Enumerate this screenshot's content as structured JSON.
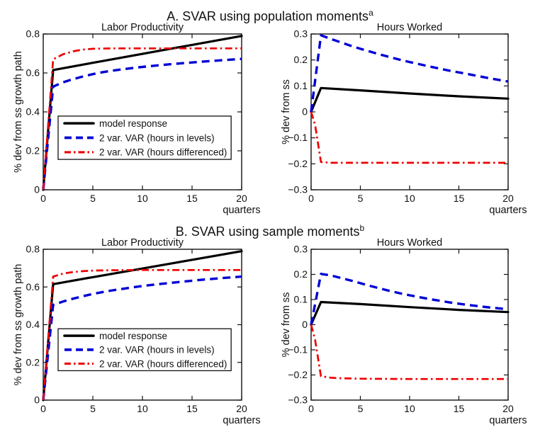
{
  "sections": [
    {
      "title": "A. SVAR using population moments",
      "superscript": "a"
    },
    {
      "title": "B. SVAR using sample moments",
      "superscript": "b"
    }
  ],
  "colors": {
    "model": "#000000",
    "var_levels": "#0000d5",
    "var_differenced": "#ee0000"
  },
  "chart_data": [
    {
      "type": "line",
      "title": "Labor Productivity",
      "xlabel": "quarters",
      "ylabel": "% dev from ss growth path",
      "xlim": [
        0,
        20
      ],
      "ylim": [
        0,
        0.8
      ],
      "xticks": [
        0,
        5,
        10,
        15,
        20
      ],
      "xtick_labels": [
        "0",
        "5",
        "10",
        "15",
        "20"
      ],
      "yticks": [
        0,
        0.2,
        0.4,
        0.6,
        0.8
      ],
      "ytick_labels": [
        "0",
        "0.2",
        "0.4",
        "0.6",
        "0.8"
      ],
      "grid": false,
      "legend": true,
      "legend_position": "lower-middle-left",
      "series": [
        {
          "name": "model response",
          "style": "solid",
          "color": "#000000",
          "x": [
            0,
            1,
            5,
            10,
            15,
            20
          ],
          "y": [
            0,
            0.615,
            0.652,
            0.698,
            0.744,
            0.79
          ]
        },
        {
          "name": "2 var. VAR (hours in levels)",
          "style": "dashed",
          "color": "#0000d5",
          "x": [
            0,
            1,
            2,
            3,
            4,
            5,
            6,
            7,
            8,
            9,
            10,
            12,
            14,
            16,
            18,
            20
          ],
          "y": [
            0,
            0.53,
            0.552,
            0.568,
            0.582,
            0.594,
            0.604,
            0.612,
            0.619,
            0.625,
            0.631,
            0.641,
            0.65,
            0.658,
            0.665,
            0.672
          ]
        },
        {
          "name": "2 var. VAR (hours differenced)",
          "style": "dashdot",
          "color": "#ee0000",
          "x": [
            0,
            1,
            2,
            3,
            4,
            5,
            7,
            10,
            15,
            20
          ],
          "y": [
            0,
            0.67,
            0.696,
            0.711,
            0.72,
            0.724,
            0.726,
            0.726,
            0.726,
            0.726
          ]
        }
      ]
    },
    {
      "type": "line",
      "title": "Hours Worked",
      "xlabel": "quarters",
      "ylabel": "% dev from ss",
      "xlim": [
        0,
        20
      ],
      "ylim": [
        -0.3,
        0.3
      ],
      "xticks": [
        0,
        5,
        10,
        15,
        20
      ],
      "xtick_labels": [
        "0",
        "5",
        "10",
        "15",
        "20"
      ],
      "yticks": [
        -0.3,
        -0.2,
        -0.1,
        0,
        0.1,
        0.2,
        0.3
      ],
      "ytick_labels": [
        "−0.3",
        "−0.2",
        "−0.1",
        "0",
        "0.1",
        "0.2",
        "0.3"
      ],
      "grid": false,
      "legend": false,
      "series": [
        {
          "name": "model response",
          "style": "solid",
          "color": "#000000",
          "x": [
            0,
            1,
            5,
            10,
            15,
            20
          ],
          "y": [
            0,
            0.092,
            0.083,
            0.071,
            0.06,
            0.051
          ]
        },
        {
          "name": "2 var. VAR (hours in levels)",
          "style": "dashed",
          "color": "#0000d5",
          "x": [
            0,
            1,
            2,
            3,
            4,
            5,
            6,
            7,
            8,
            9,
            10,
            12,
            14,
            16,
            18,
            20
          ],
          "y": [
            0,
            0.295,
            0.281,
            0.268,
            0.255,
            0.243,
            0.232,
            0.221,
            0.211,
            0.201,
            0.192,
            0.175,
            0.159,
            0.145,
            0.13,
            0.117
          ]
        },
        {
          "name": "2 var. VAR (hours differenced)",
          "style": "dashdot",
          "color": "#ee0000",
          "x": [
            0,
            0.4,
            1,
            2,
            5,
            10,
            15,
            20
          ],
          "y": [
            0,
            -0.05,
            -0.193,
            -0.196,
            -0.196,
            -0.196,
            -0.196,
            -0.196
          ]
        }
      ]
    },
    {
      "type": "line",
      "title": "Labor Productivity",
      "xlabel": "quarters",
      "ylabel": "% dev from ss growth path",
      "xlim": [
        0,
        20
      ],
      "ylim": [
        0,
        0.8
      ],
      "xticks": [
        0,
        5,
        10,
        15,
        20
      ],
      "xtick_labels": [
        "0",
        "5",
        "10",
        "15",
        "20"
      ],
      "yticks": [
        0,
        0.2,
        0.4,
        0.6,
        0.8
      ],
      "ytick_labels": [
        "0",
        "0.2",
        "0.4",
        "0.6",
        "0.8"
      ],
      "grid": false,
      "legend": true,
      "legend_position": "lower-middle-left",
      "series": [
        {
          "name": "model response",
          "style": "solid",
          "color": "#000000",
          "x": [
            0,
            1,
            5,
            10,
            15,
            20
          ],
          "y": [
            0,
            0.615,
            0.652,
            0.698,
            0.744,
            0.79
          ]
        },
        {
          "name": "2 var. VAR (hours in levels)",
          "style": "dashed",
          "color": "#0000d5",
          "x": [
            0,
            1,
            2,
            3,
            4,
            5,
            6,
            7,
            8,
            9,
            10,
            12,
            14,
            16,
            18,
            20
          ],
          "y": [
            0,
            0.505,
            0.523,
            0.538,
            0.551,
            0.563,
            0.573,
            0.582,
            0.59,
            0.598,
            0.605,
            0.617,
            0.628,
            0.638,
            0.647,
            0.655
          ]
        },
        {
          "name": "2 var. VAR (hours differenced)",
          "style": "dashdot",
          "color": "#ee0000",
          "x": [
            0,
            1,
            2,
            3,
            4,
            5,
            7,
            10,
            15,
            20
          ],
          "y": [
            0,
            0.655,
            0.671,
            0.679,
            0.684,
            0.687,
            0.689,
            0.69,
            0.69,
            0.69
          ]
        }
      ]
    },
    {
      "type": "line",
      "title": "Hours Worked",
      "xlabel": "quarters",
      "ylabel": "% dev from ss",
      "xlim": [
        0,
        20
      ],
      "ylim": [
        -0.3,
        0.3
      ],
      "xticks": [
        0,
        5,
        10,
        15,
        20
      ],
      "xtick_labels": [
        "0",
        "5",
        "10",
        "15",
        "20"
      ],
      "yticks": [
        -0.3,
        -0.2,
        -0.1,
        0,
        0.1,
        0.2,
        0.3
      ],
      "ytick_labels": [
        "−0.3",
        "−0.2",
        "−0.1",
        "0",
        "0.1",
        "0.2",
        "0.3"
      ],
      "grid": false,
      "legend": false,
      "series": [
        {
          "name": "model response",
          "style": "solid",
          "color": "#000000",
          "x": [
            0,
            1,
            5,
            10,
            15,
            20
          ],
          "y": [
            0,
            0.09,
            0.082,
            0.07,
            0.059,
            0.05
          ]
        },
        {
          "name": "2 var. VAR (hours in levels)",
          "style": "dashed",
          "color": "#0000d5",
          "x": [
            0,
            1,
            2,
            3,
            4,
            5,
            6,
            7,
            8,
            9,
            10,
            12,
            14,
            16,
            18,
            20
          ],
          "y": [
            0,
            0.202,
            0.196,
            0.186,
            0.176,
            0.165,
            0.154,
            0.144,
            0.134,
            0.125,
            0.117,
            0.102,
            0.089,
            0.078,
            0.069,
            0.061
          ]
        },
        {
          "name": "2 var. VAR (hours differenced)",
          "style": "dashdot",
          "color": "#ee0000",
          "x": [
            0,
            0.4,
            1,
            2,
            3,
            5,
            10,
            15,
            20
          ],
          "y": [
            0,
            -0.06,
            -0.205,
            -0.211,
            -0.213,
            -0.215,
            -0.216,
            -0.216,
            -0.216
          ]
        }
      ]
    }
  ]
}
